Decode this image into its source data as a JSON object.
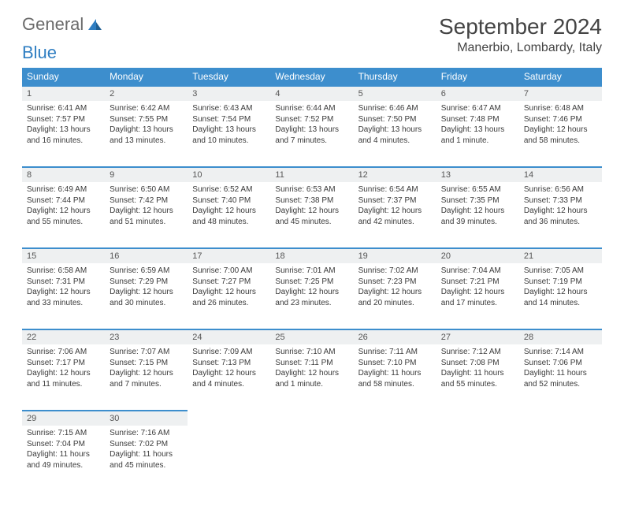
{
  "brand": {
    "word1": "General",
    "word2": "Blue"
  },
  "title": "September 2024",
  "location": "Manerbio, Lombardy, Italy",
  "colors": {
    "header_bg": "#3d8ecd",
    "header_text": "#ffffff",
    "daynum_bg": "#eef0f1",
    "rule": "#3d8ecd",
    "text": "#3a3a3a",
    "brand_gray": "#6b6b6b",
    "brand_blue": "#2f7ec2"
  },
  "weekdays": [
    "Sunday",
    "Monday",
    "Tuesday",
    "Wednesday",
    "Thursday",
    "Friday",
    "Saturday"
  ],
  "weeks": [
    [
      {
        "n": "1",
        "sr": "Sunrise: 6:41 AM",
        "ss": "Sunset: 7:57 PM",
        "d1": "Daylight: 13 hours",
        "d2": "and 16 minutes."
      },
      {
        "n": "2",
        "sr": "Sunrise: 6:42 AM",
        "ss": "Sunset: 7:55 PM",
        "d1": "Daylight: 13 hours",
        "d2": "and 13 minutes."
      },
      {
        "n": "3",
        "sr": "Sunrise: 6:43 AM",
        "ss": "Sunset: 7:54 PM",
        "d1": "Daylight: 13 hours",
        "d2": "and 10 minutes."
      },
      {
        "n": "4",
        "sr": "Sunrise: 6:44 AM",
        "ss": "Sunset: 7:52 PM",
        "d1": "Daylight: 13 hours",
        "d2": "and 7 minutes."
      },
      {
        "n": "5",
        "sr": "Sunrise: 6:46 AM",
        "ss": "Sunset: 7:50 PM",
        "d1": "Daylight: 13 hours",
        "d2": "and 4 minutes."
      },
      {
        "n": "6",
        "sr": "Sunrise: 6:47 AM",
        "ss": "Sunset: 7:48 PM",
        "d1": "Daylight: 13 hours",
        "d2": "and 1 minute."
      },
      {
        "n": "7",
        "sr": "Sunrise: 6:48 AM",
        "ss": "Sunset: 7:46 PM",
        "d1": "Daylight: 12 hours",
        "d2": "and 58 minutes."
      }
    ],
    [
      {
        "n": "8",
        "sr": "Sunrise: 6:49 AM",
        "ss": "Sunset: 7:44 PM",
        "d1": "Daylight: 12 hours",
        "d2": "and 55 minutes."
      },
      {
        "n": "9",
        "sr": "Sunrise: 6:50 AM",
        "ss": "Sunset: 7:42 PM",
        "d1": "Daylight: 12 hours",
        "d2": "and 51 minutes."
      },
      {
        "n": "10",
        "sr": "Sunrise: 6:52 AM",
        "ss": "Sunset: 7:40 PM",
        "d1": "Daylight: 12 hours",
        "d2": "and 48 minutes."
      },
      {
        "n": "11",
        "sr": "Sunrise: 6:53 AM",
        "ss": "Sunset: 7:38 PM",
        "d1": "Daylight: 12 hours",
        "d2": "and 45 minutes."
      },
      {
        "n": "12",
        "sr": "Sunrise: 6:54 AM",
        "ss": "Sunset: 7:37 PM",
        "d1": "Daylight: 12 hours",
        "d2": "and 42 minutes."
      },
      {
        "n": "13",
        "sr": "Sunrise: 6:55 AM",
        "ss": "Sunset: 7:35 PM",
        "d1": "Daylight: 12 hours",
        "d2": "and 39 minutes."
      },
      {
        "n": "14",
        "sr": "Sunrise: 6:56 AM",
        "ss": "Sunset: 7:33 PM",
        "d1": "Daylight: 12 hours",
        "d2": "and 36 minutes."
      }
    ],
    [
      {
        "n": "15",
        "sr": "Sunrise: 6:58 AM",
        "ss": "Sunset: 7:31 PM",
        "d1": "Daylight: 12 hours",
        "d2": "and 33 minutes."
      },
      {
        "n": "16",
        "sr": "Sunrise: 6:59 AM",
        "ss": "Sunset: 7:29 PM",
        "d1": "Daylight: 12 hours",
        "d2": "and 30 minutes."
      },
      {
        "n": "17",
        "sr": "Sunrise: 7:00 AM",
        "ss": "Sunset: 7:27 PM",
        "d1": "Daylight: 12 hours",
        "d2": "and 26 minutes."
      },
      {
        "n": "18",
        "sr": "Sunrise: 7:01 AM",
        "ss": "Sunset: 7:25 PM",
        "d1": "Daylight: 12 hours",
        "d2": "and 23 minutes."
      },
      {
        "n": "19",
        "sr": "Sunrise: 7:02 AM",
        "ss": "Sunset: 7:23 PM",
        "d1": "Daylight: 12 hours",
        "d2": "and 20 minutes."
      },
      {
        "n": "20",
        "sr": "Sunrise: 7:04 AM",
        "ss": "Sunset: 7:21 PM",
        "d1": "Daylight: 12 hours",
        "d2": "and 17 minutes."
      },
      {
        "n": "21",
        "sr": "Sunrise: 7:05 AM",
        "ss": "Sunset: 7:19 PM",
        "d1": "Daylight: 12 hours",
        "d2": "and 14 minutes."
      }
    ],
    [
      {
        "n": "22",
        "sr": "Sunrise: 7:06 AM",
        "ss": "Sunset: 7:17 PM",
        "d1": "Daylight: 12 hours",
        "d2": "and 11 minutes."
      },
      {
        "n": "23",
        "sr": "Sunrise: 7:07 AM",
        "ss": "Sunset: 7:15 PM",
        "d1": "Daylight: 12 hours",
        "d2": "and 7 minutes."
      },
      {
        "n": "24",
        "sr": "Sunrise: 7:09 AM",
        "ss": "Sunset: 7:13 PM",
        "d1": "Daylight: 12 hours",
        "d2": "and 4 minutes."
      },
      {
        "n": "25",
        "sr": "Sunrise: 7:10 AM",
        "ss": "Sunset: 7:11 PM",
        "d1": "Daylight: 12 hours",
        "d2": "and 1 minute."
      },
      {
        "n": "26",
        "sr": "Sunrise: 7:11 AM",
        "ss": "Sunset: 7:10 PM",
        "d1": "Daylight: 11 hours",
        "d2": "and 58 minutes."
      },
      {
        "n": "27",
        "sr": "Sunrise: 7:12 AM",
        "ss": "Sunset: 7:08 PM",
        "d1": "Daylight: 11 hours",
        "d2": "and 55 minutes."
      },
      {
        "n": "28",
        "sr": "Sunrise: 7:14 AM",
        "ss": "Sunset: 7:06 PM",
        "d1": "Daylight: 11 hours",
        "d2": "and 52 minutes."
      }
    ],
    [
      {
        "n": "29",
        "sr": "Sunrise: 7:15 AM",
        "ss": "Sunset: 7:04 PM",
        "d1": "Daylight: 11 hours",
        "d2": "and 49 minutes."
      },
      {
        "n": "30",
        "sr": "Sunrise: 7:16 AM",
        "ss": "Sunset: 7:02 PM",
        "d1": "Daylight: 11 hours",
        "d2": "and 45 minutes."
      },
      null,
      null,
      null,
      null,
      null
    ]
  ]
}
